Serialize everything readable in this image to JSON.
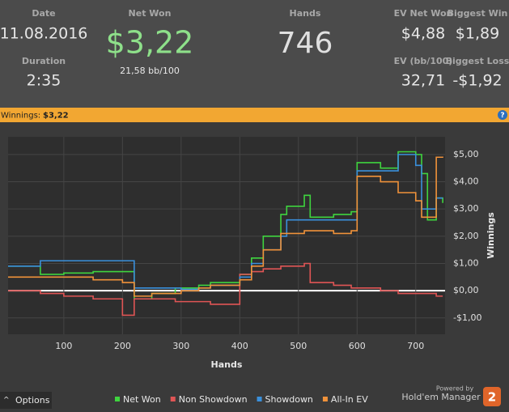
{
  "header": {
    "date_label": "Date",
    "date": "11.08.2016",
    "net_won_label": "Net Won",
    "net_won": "$3,22",
    "bb100": "21,58 bb/100",
    "hands_label": "Hands",
    "hands": "746",
    "ev_net_won_label": "EV Net Won",
    "ev_net_won": "$4,88",
    "biggest_win_label": "Biggest Win",
    "biggest_win": "$1,89",
    "duration_label": "Duration",
    "duration": "2:35",
    "ev_bb_label": "EV (bb/100)",
    "ev_bb": "32,71",
    "biggest_loss_label": "Biggest Loss",
    "biggest_loss": "-$1,92"
  },
  "banner": {
    "label": "Winnings:",
    "value": "$3,22",
    "help": "?"
  },
  "footer": {
    "options": "Options",
    "powered": "Powered by",
    "brand": "Hold'em Manager",
    "logo": "2"
  },
  "chart_data": {
    "type": "line",
    "xlabel": "Hands",
    "ylabel": "Winnings",
    "grid": true,
    "x": [
      5,
      60,
      100,
      150,
      200,
      220,
      250,
      290,
      300,
      330,
      350,
      380,
      400,
      420,
      440,
      470,
      480,
      510,
      520,
      560,
      590,
      600,
      640,
      670,
      700,
      710,
      720,
      735,
      746
    ],
    "xlim": [
      5,
      750
    ],
    "xticks": [
      100,
      200,
      300,
      400,
      500,
      600,
      700
    ],
    "ylim": [
      -1.6,
      5.65
    ],
    "yticks": [
      {
        "value": -1,
        "label": "-$1,00"
      },
      {
        "value": 0,
        "label": "$0,00"
      },
      {
        "value": 1,
        "label": "$1,00"
      },
      {
        "value": 2,
        "label": "$2,00"
      },
      {
        "value": 3,
        "label": "$3,00"
      },
      {
        "value": 4,
        "label": "$4,00"
      },
      {
        "value": 5,
        "label": "$5,00"
      }
    ],
    "series": [
      {
        "name": "Net Won",
        "color": "#3fd43f",
        "values": [
          0.9,
          0.6,
          0.65,
          0.7,
          0.7,
          -0.3,
          -0.1,
          0.1,
          0.1,
          0.2,
          0.3,
          0.3,
          0.6,
          1.2,
          2.0,
          2.8,
          3.1,
          3.5,
          2.7,
          2.8,
          2.9,
          4.7,
          4.5,
          5.1,
          5.0,
          4.3,
          2.6,
          3.4,
          3.22
        ]
      },
      {
        "name": "Non Showdown",
        "color": "#e05555",
        "values": [
          0.0,
          -0.1,
          -0.2,
          -0.3,
          -0.9,
          -0.3,
          -0.3,
          -0.4,
          -0.4,
          -0.4,
          -0.5,
          -0.5,
          0.6,
          0.7,
          0.8,
          0.9,
          0.9,
          1.0,
          0.3,
          0.2,
          0.1,
          0.1,
          0.0,
          -0.1,
          -0.1,
          -0.1,
          -0.1,
          -0.2,
          -0.2
        ]
      },
      {
        "name": "Showdown",
        "color": "#3a90dc",
        "values": [
          0.9,
          1.1,
          1.1,
          1.1,
          1.1,
          0.1,
          0.1,
          0.1,
          0.05,
          0.1,
          0.2,
          0.2,
          0.5,
          1.0,
          1.5,
          2.0,
          2.6,
          2.6,
          2.6,
          2.6,
          2.6,
          4.4,
          4.4,
          5.0,
          4.6,
          3.0,
          3.0,
          3.4,
          3.4
        ]
      },
      {
        "name": "All-In EV",
        "color": "#f0923a",
        "values": [
          0.5,
          0.5,
          0.5,
          0.4,
          0.3,
          -0.2,
          -0.1,
          -0.1,
          0.0,
          0.1,
          0.2,
          0.2,
          0.4,
          0.9,
          1.5,
          2.1,
          2.1,
          2.2,
          2.2,
          2.1,
          2.2,
          4.2,
          4.0,
          3.6,
          3.3,
          2.7,
          2.7,
          4.9,
          4.88
        ]
      }
    ]
  }
}
